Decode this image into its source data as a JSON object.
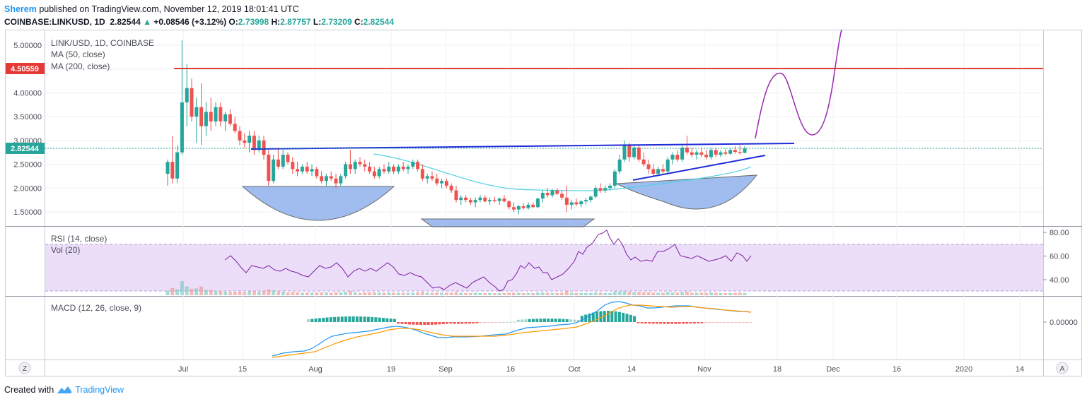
{
  "header": {
    "user": "Sherem",
    "published": "published on TradingView.com, November 12, 2019 18:01:41 UTC",
    "symbol": "COINBASE:LINKUSD, 1D",
    "last": "2.82544",
    "change": "+0.08546 (+3.12%)",
    "o_label": "O:",
    "o": "2.73998",
    "h_label": "H:",
    "h": "2.87757",
    "l_label": "L:",
    "l": "2.73209",
    "c_label": "C:",
    "c": "2.82544"
  },
  "legend": {
    "title": "LINK/USD, 1D, COINBASE",
    "ma50": "MA (50, close)",
    "ma200": "MA (200, close)",
    "rsi": "RSI (14, close)",
    "vol": "Vol (20)",
    "macd": "MACD (12, 26, close, 9)"
  },
  "badges": {
    "resistance": "4.50559",
    "last": "2.82544"
  },
  "chart_data": {
    "type": "candlestick",
    "symbol": "LINK/USD",
    "interval": "1D",
    "exchange": "COINBASE",
    "price_axis": {
      "ticks": [
        "5.00000",
        "4.50000",
        "4.00000",
        "3.50000",
        "3.00000",
        "2.50000",
        "2.00000",
        "1.50000"
      ],
      "range": [
        1.1,
        5.25
      ]
    },
    "time_axis": {
      "ticks": [
        "Jul",
        "15",
        "Aug",
        "19",
        "Sep",
        "16",
        "Oct",
        "14",
        "Nov",
        "18",
        "Dec",
        "16",
        "2020",
        "14"
      ]
    },
    "last_price": 2.82544,
    "resistance_level": 4.50559,
    "candles": [
      {
        "o": 2.3,
        "h": 2.6,
        "l": 2.05,
        "c": 2.55
      },
      {
        "o": 2.55,
        "h": 3.1,
        "l": 2.1,
        "c": 2.2
      },
      {
        "o": 2.2,
        "h": 2.9,
        "l": 2.1,
        "c": 2.75
      },
      {
        "o": 2.75,
        "h": 5.1,
        "l": 2.7,
        "c": 3.8
      },
      {
        "o": 3.8,
        "h": 4.6,
        "l": 3.3,
        "c": 4.1
      },
      {
        "o": 4.1,
        "h": 4.3,
        "l": 3.4,
        "c": 3.5
      },
      {
        "o": 3.5,
        "h": 3.9,
        "l": 2.95,
        "c": 3.7
      },
      {
        "o": 3.7,
        "h": 4.2,
        "l": 2.9,
        "c": 3.3
      },
      {
        "o": 3.3,
        "h": 3.8,
        "l": 3.1,
        "c": 3.6
      },
      {
        "o": 3.6,
        "h": 3.9,
        "l": 3.2,
        "c": 3.4
      },
      {
        "o": 3.4,
        "h": 3.8,
        "l": 3.3,
        "c": 3.7
      },
      {
        "o": 3.7,
        "h": 3.8,
        "l": 3.3,
        "c": 3.4
      },
      {
        "o": 3.4,
        "h": 3.6,
        "l": 3.2,
        "c": 3.55
      },
      {
        "o": 3.55,
        "h": 3.65,
        "l": 3.3,
        "c": 3.35
      },
      {
        "o": 3.35,
        "h": 3.5,
        "l": 3.15,
        "c": 3.2
      },
      {
        "o": 3.2,
        "h": 3.3,
        "l": 2.9,
        "c": 3.0
      },
      {
        "o": 3.0,
        "h": 3.15,
        "l": 2.85,
        "c": 2.95
      },
      {
        "o": 2.95,
        "h": 3.2,
        "l": 2.75,
        "c": 3.1
      },
      {
        "o": 3.1,
        "h": 3.2,
        "l": 2.7,
        "c": 2.8
      },
      {
        "o": 2.8,
        "h": 3.1,
        "l": 2.75,
        "c": 3.0
      },
      {
        "o": 3.0,
        "h": 3.1,
        "l": 2.6,
        "c": 2.7
      },
      {
        "o": 2.7,
        "h": 2.8,
        "l": 2.05,
        "c": 2.15
      },
      {
        "o": 2.15,
        "h": 2.7,
        "l": 2.1,
        "c": 2.6
      },
      {
        "o": 2.6,
        "h": 2.85,
        "l": 2.4,
        "c": 2.45
      },
      {
        "o": 2.45,
        "h": 2.8,
        "l": 2.4,
        "c": 2.7
      },
      {
        "o": 2.7,
        "h": 2.75,
        "l": 2.5,
        "c": 2.55
      },
      {
        "o": 2.55,
        "h": 2.65,
        "l": 2.3,
        "c": 2.4
      },
      {
        "o": 2.4,
        "h": 2.55,
        "l": 2.25,
        "c": 2.35
      },
      {
        "o": 2.35,
        "h": 2.5,
        "l": 2.3,
        "c": 2.45
      },
      {
        "o": 2.45,
        "h": 2.55,
        "l": 2.3,
        "c": 2.35
      },
      {
        "o": 2.35,
        "h": 2.5,
        "l": 2.25,
        "c": 2.4
      },
      {
        "o": 2.4,
        "h": 2.45,
        "l": 2.2,
        "c": 2.25
      },
      {
        "o": 2.25,
        "h": 2.35,
        "l": 2.1,
        "c": 2.15
      },
      {
        "o": 2.15,
        "h": 2.3,
        "l": 2.05,
        "c": 2.25
      },
      {
        "o": 2.25,
        "h": 2.35,
        "l": 2.15,
        "c": 2.2
      },
      {
        "o": 2.2,
        "h": 2.3,
        "l": 2.0,
        "c": 2.1
      },
      {
        "o": 2.1,
        "h": 2.3,
        "l": 2.05,
        "c": 2.25
      },
      {
        "o": 2.25,
        "h": 2.55,
        "l": 2.2,
        "c": 2.5
      },
      {
        "o": 2.5,
        "h": 2.8,
        "l": 2.3,
        "c": 2.4
      },
      {
        "o": 2.4,
        "h": 2.6,
        "l": 2.3,
        "c": 2.55
      },
      {
        "o": 2.55,
        "h": 2.65,
        "l": 2.45,
        "c": 2.5
      },
      {
        "o": 2.5,
        "h": 2.6,
        "l": 2.35,
        "c": 2.45
      },
      {
        "o": 2.45,
        "h": 2.55,
        "l": 2.3,
        "c": 2.35
      },
      {
        "o": 2.35,
        "h": 2.45,
        "l": 2.2,
        "c": 2.25
      },
      {
        "o": 2.25,
        "h": 2.45,
        "l": 2.2,
        "c": 2.4
      },
      {
        "o": 2.4,
        "h": 2.5,
        "l": 2.3,
        "c": 2.35
      },
      {
        "o": 2.35,
        "h": 2.55,
        "l": 2.3,
        "c": 2.45
      },
      {
        "o": 2.45,
        "h": 2.5,
        "l": 2.3,
        "c": 2.35
      },
      {
        "o": 2.35,
        "h": 2.5,
        "l": 2.3,
        "c": 2.45
      },
      {
        "o": 2.45,
        "h": 2.55,
        "l": 2.35,
        "c": 2.4
      },
      {
        "o": 2.4,
        "h": 2.5,
        "l": 2.3,
        "c": 2.45
      },
      {
        "o": 2.45,
        "h": 2.6,
        "l": 2.4,
        "c": 2.55
      },
      {
        "o": 2.55,
        "h": 2.6,
        "l": 2.35,
        "c": 2.4
      },
      {
        "o": 2.4,
        "h": 2.5,
        "l": 2.15,
        "c": 2.2
      },
      {
        "o": 2.2,
        "h": 2.3,
        "l": 2.1,
        "c": 2.25
      },
      {
        "o": 2.25,
        "h": 2.35,
        "l": 2.15,
        "c": 2.2
      },
      {
        "o": 2.2,
        "h": 2.3,
        "l": 2.05,
        "c": 2.1
      },
      {
        "o": 2.1,
        "h": 2.2,
        "l": 2.0,
        "c": 2.15
      },
      {
        "o": 2.15,
        "h": 2.2,
        "l": 2.0,
        "c": 2.05
      },
      {
        "o": 2.05,
        "h": 2.1,
        "l": 1.9,
        "c": 1.95
      },
      {
        "o": 1.95,
        "h": 2.05,
        "l": 1.7,
        "c": 1.75
      },
      {
        "o": 1.75,
        "h": 1.85,
        "l": 1.65,
        "c": 1.8
      },
      {
        "o": 1.8,
        "h": 1.85,
        "l": 1.7,
        "c": 1.75
      },
      {
        "o": 1.75,
        "h": 1.8,
        "l": 1.65,
        "c": 1.7
      },
      {
        "o": 1.7,
        "h": 1.8,
        "l": 1.6,
        "c": 1.75
      },
      {
        "o": 1.75,
        "h": 1.85,
        "l": 1.7,
        "c": 1.8
      },
      {
        "o": 1.8,
        "h": 1.85,
        "l": 1.7,
        "c": 1.72
      },
      {
        "o": 1.72,
        "h": 1.8,
        "l": 1.65,
        "c": 1.75
      },
      {
        "o": 1.75,
        "h": 1.82,
        "l": 1.7,
        "c": 1.73
      },
      {
        "o": 1.73,
        "h": 1.8,
        "l": 1.65,
        "c": 1.78
      },
      {
        "o": 1.78,
        "h": 1.85,
        "l": 1.7,
        "c": 1.72
      },
      {
        "o": 1.72,
        "h": 1.75,
        "l": 1.55,
        "c": 1.6
      },
      {
        "o": 1.6,
        "h": 1.7,
        "l": 1.5,
        "c": 1.55
      },
      {
        "o": 1.55,
        "h": 1.65,
        "l": 1.45,
        "c": 1.62
      },
      {
        "o": 1.62,
        "h": 1.68,
        "l": 1.55,
        "c": 1.58
      },
      {
        "o": 1.58,
        "h": 1.7,
        "l": 1.55,
        "c": 1.65
      },
      {
        "o": 1.65,
        "h": 1.7,
        "l": 1.58,
        "c": 1.6
      },
      {
        "o": 1.6,
        "h": 1.8,
        "l": 1.58,
        "c": 1.78
      },
      {
        "o": 1.78,
        "h": 1.95,
        "l": 1.7,
        "c": 1.9
      },
      {
        "o": 1.9,
        "h": 2.0,
        "l": 1.8,
        "c": 1.85
      },
      {
        "o": 1.85,
        "h": 1.98,
        "l": 1.8,
        "c": 1.95
      },
      {
        "o": 1.95,
        "h": 2.0,
        "l": 1.85,
        "c": 1.88
      },
      {
        "o": 1.88,
        "h": 1.95,
        "l": 1.75,
        "c": 1.8
      },
      {
        "o": 1.8,
        "h": 2.05,
        "l": 1.5,
        "c": 1.65
      },
      {
        "o": 1.65,
        "h": 1.75,
        "l": 1.55,
        "c": 1.7
      },
      {
        "o": 1.7,
        "h": 1.78,
        "l": 1.62,
        "c": 1.66
      },
      {
        "o": 1.66,
        "h": 1.75,
        "l": 1.6,
        "c": 1.72
      },
      {
        "o": 1.72,
        "h": 1.8,
        "l": 1.65,
        "c": 1.75
      },
      {
        "o": 1.75,
        "h": 1.85,
        "l": 1.7,
        "c": 1.82
      },
      {
        "o": 1.82,
        "h": 2.05,
        "l": 1.78,
        "c": 2.0
      },
      {
        "o": 2.0,
        "h": 2.1,
        "l": 1.9,
        "c": 1.95
      },
      {
        "o": 1.95,
        "h": 2.05,
        "l": 1.9,
        "c": 2.0
      },
      {
        "o": 2.0,
        "h": 2.1,
        "l": 1.95,
        "c": 2.05
      },
      {
        "o": 2.05,
        "h": 2.4,
        "l": 2.0,
        "c": 2.35
      },
      {
        "o": 2.35,
        "h": 2.7,
        "l": 2.3,
        "c": 2.6
      },
      {
        "o": 2.6,
        "h": 3.0,
        "l": 2.55,
        "c": 2.9
      },
      {
        "o": 2.9,
        "h": 2.95,
        "l": 2.55,
        "c": 2.65
      },
      {
        "o": 2.65,
        "h": 2.9,
        "l": 2.6,
        "c": 2.85
      },
      {
        "o": 2.85,
        "h": 2.9,
        "l": 2.55,
        "c": 2.6
      },
      {
        "o": 2.6,
        "h": 2.75,
        "l": 2.45,
        "c": 2.5
      },
      {
        "o": 2.5,
        "h": 2.6,
        "l": 2.3,
        "c": 2.4
      },
      {
        "o": 2.4,
        "h": 2.5,
        "l": 2.25,
        "c": 2.3
      },
      {
        "o": 2.3,
        "h": 2.45,
        "l": 2.25,
        "c": 2.4
      },
      {
        "o": 2.4,
        "h": 2.5,
        "l": 2.3,
        "c": 2.35
      },
      {
        "o": 2.35,
        "h": 2.65,
        "l": 2.3,
        "c": 2.6
      },
      {
        "o": 2.6,
        "h": 2.75,
        "l": 2.5,
        "c": 2.7
      },
      {
        "o": 2.7,
        "h": 2.8,
        "l": 2.55,
        "c": 2.6
      },
      {
        "o": 2.6,
        "h": 2.9,
        "l": 2.55,
        "c": 2.85
      },
      {
        "o": 2.85,
        "h": 3.1,
        "l": 2.7,
        "c": 2.75
      },
      {
        "o": 2.75,
        "h": 2.85,
        "l": 2.65,
        "c": 2.7
      },
      {
        "o": 2.7,
        "h": 2.8,
        "l": 2.6,
        "c": 2.75
      },
      {
        "o": 2.75,
        "h": 2.85,
        "l": 2.65,
        "c": 2.7
      },
      {
        "o": 2.7,
        "h": 2.8,
        "l": 2.6,
        "c": 2.65
      },
      {
        "o": 2.65,
        "h": 2.85,
        "l": 2.6,
        "c": 2.8
      },
      {
        "o": 2.8,
        "h": 2.85,
        "l": 2.65,
        "c": 2.7
      },
      {
        "o": 2.7,
        "h": 2.8,
        "l": 2.65,
        "c": 2.75
      },
      {
        "o": 2.75,
        "h": 2.82,
        "l": 2.68,
        "c": 2.72
      },
      {
        "o": 2.72,
        "h": 2.85,
        "l": 2.7,
        "c": 2.8
      },
      {
        "o": 2.8,
        "h": 2.88,
        "l": 2.72,
        "c": 2.76
      },
      {
        "o": 2.76,
        "h": 2.9,
        "l": 2.7,
        "c": 2.74
      },
      {
        "o": 2.74,
        "h": 2.88,
        "l": 2.73,
        "c": 2.83
      }
    ],
    "indicators": {
      "rsi": {
        "ticks": [
          "80.00",
          "60.00",
          "40.00"
        ],
        "upper_band": 70,
        "lower_band": 30,
        "range": [
          25,
          85
        ]
      },
      "macd": {
        "ticks": [
          "0.00000"
        ],
        "range": [
          -0.55,
          0.3
        ]
      }
    }
  },
  "toolbar": {
    "zoom_label": "Z",
    "auto_label": "A"
  },
  "footer": {
    "created": "Created with",
    "brand": "TradingView"
  },
  "colors": {
    "up": "#26a69a",
    "down": "#ef5350",
    "resistance": "#e53935",
    "trendline": "#1f2bd8",
    "projection": "#9c27b0",
    "ma": "#4dd0e1",
    "rsi": "#7b1fa2",
    "macd": "#2196f3",
    "signal": "#ff9800",
    "cup": "#6f9ae8"
  }
}
